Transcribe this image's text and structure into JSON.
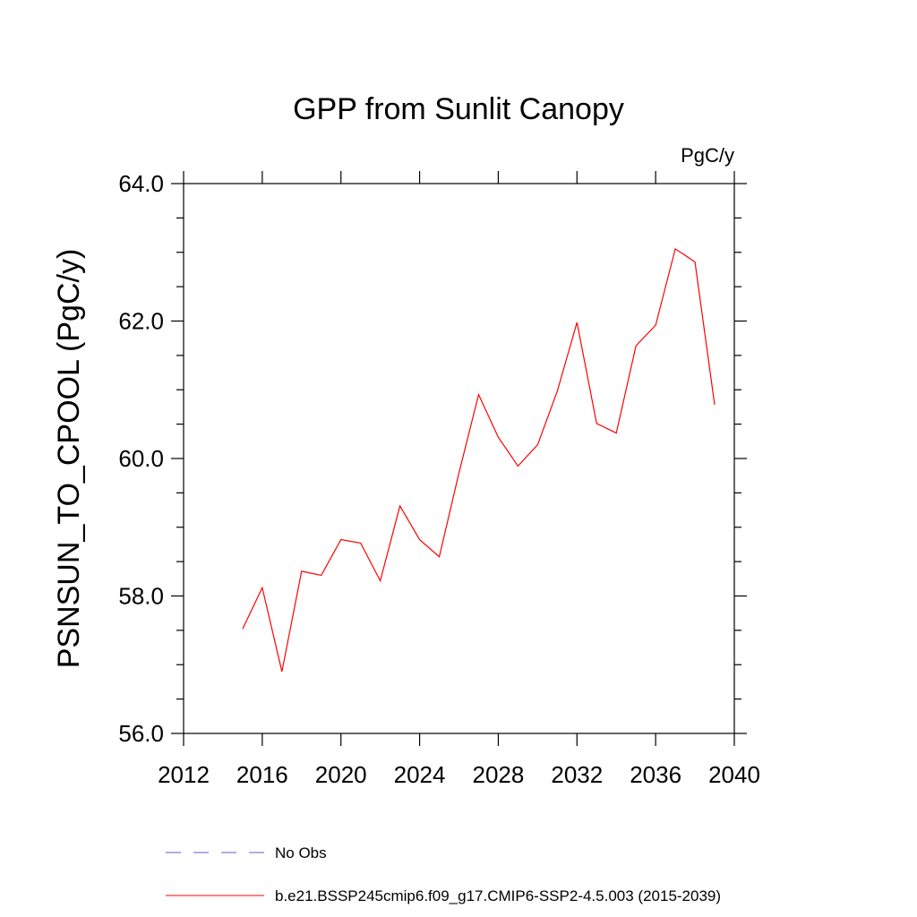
{
  "chart_data": {
    "type": "line",
    "title": "GPP from Sunlit Canopy",
    "units_label": "PgC/y",
    "ylabel": "PSNSUN_TO_CPOOL  (PgC/y)",
    "xlabel": "",
    "xlim": [
      2012,
      2040
    ],
    "ylim": [
      56.0,
      64.0
    ],
    "x_ticks": [
      2012,
      2016,
      2020,
      2024,
      2028,
      2032,
      2036,
      2040
    ],
    "y_ticks": [
      "56.0",
      "58.0",
      "60.0",
      "62.0",
      "64.0"
    ],
    "series": [
      {
        "name": "b.e21.BSSP245cmip6.f09_g17.CMIP6-SSP2-4.5.003 (2015-2039)",
        "color": "#ff0000",
        "x": [
          2015,
          2016,
          2017,
          2018,
          2019,
          2020,
          2021,
          2022,
          2023,
          2024,
          2025,
          2026,
          2027,
          2028,
          2029,
          2030,
          2031,
          2032,
          2033,
          2034,
          2035,
          2036,
          2037,
          2038,
          2039
        ],
        "y": [
          57.52,
          58.12,
          56.9,
          58.36,
          58.3,
          58.82,
          58.77,
          58.22,
          59.31,
          58.82,
          58.57,
          59.79,
          60.93,
          60.31,
          59.89,
          60.2,
          60.98,
          61.98,
          60.51,
          60.37,
          61.64,
          61.94,
          63.05,
          62.86,
          60.78
        ]
      }
    ],
    "legend": [
      {
        "label": "No Obs",
        "style": "dashed",
        "color": "#6a5acd"
      },
      {
        "label": "b.e21.BSSP245cmip6.f09_g17.CMIP6-SSP2-4.5.003 (2015-2039)",
        "style": "solid",
        "color": "#ff0000"
      }
    ],
    "legend_position": "bottom"
  }
}
